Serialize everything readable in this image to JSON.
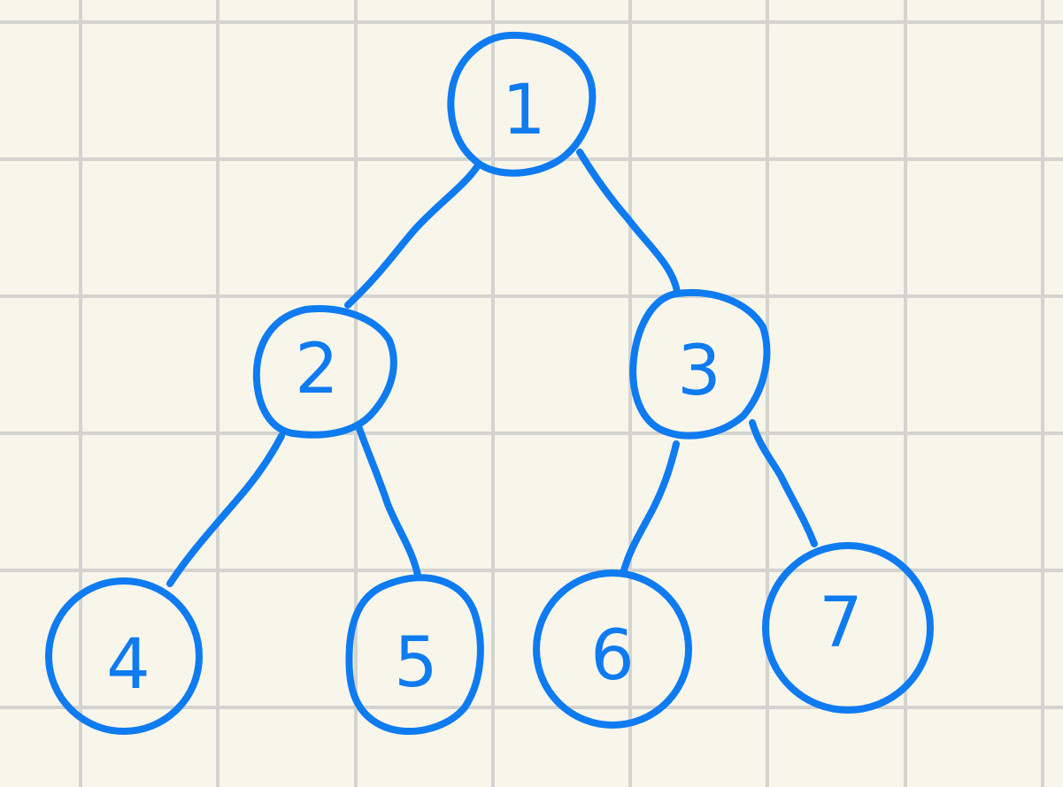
{
  "diagram": {
    "type": "binary-tree",
    "colors": {
      "background": "#f8f6ea",
      "grid": "#d3d3d1",
      "ink": "#0f7bf0"
    },
    "nodes": [
      {
        "id": "n1",
        "label": "1"
      },
      {
        "id": "n2",
        "label": "2"
      },
      {
        "id": "n3",
        "label": "3"
      },
      {
        "id": "n4",
        "label": "4"
      },
      {
        "id": "n5",
        "label": "5"
      },
      {
        "id": "n6",
        "label": "6"
      },
      {
        "id": "n7",
        "label": "7"
      }
    ],
    "edges": [
      {
        "from": "n1",
        "to": "n2"
      },
      {
        "from": "n1",
        "to": "n3"
      },
      {
        "from": "n2",
        "to": "n4"
      },
      {
        "from": "n2",
        "to": "n5"
      },
      {
        "from": "n3",
        "to": "n6"
      },
      {
        "from": "n3",
        "to": "n7"
      }
    ]
  }
}
